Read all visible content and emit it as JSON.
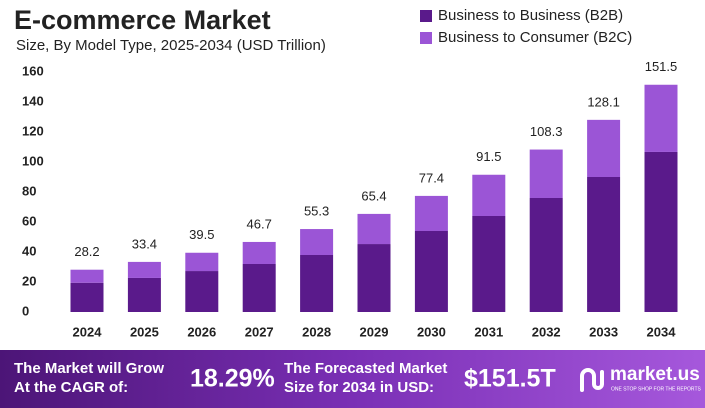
{
  "chart_data": {
    "type": "stacked_bar",
    "title": "E-commerce Market",
    "subtitle": "Size, By Model Type, 2025-2034 (USD Trillion)",
    "categories": [
      "2024",
      "2025",
      "2026",
      "2027",
      "2028",
      "2029",
      "2030",
      "2031",
      "2032",
      "2033",
      "2034"
    ],
    "series": [
      {
        "name": "Business to Business (B2B)",
        "color": "#5a1a8b",
        "values": [
          19.5,
          22.7,
          27.3,
          32,
          38,
          45.3,
          54,
          64,
          76,
          90,
          106.7
        ]
      },
      {
        "name": "Business to Consumer (B2C)",
        "color": "#9b55d6",
        "values": [
          8.7,
          10.7,
          12.2,
          14.7,
          17.3,
          20.1,
          23.4,
          27.5,
          32.3,
          38.1,
          44.8
        ]
      }
    ],
    "totals": [
      28.2,
      33.4,
      39.5,
      46.7,
      55.3,
      65.4,
      77.4,
      91.5,
      108.3,
      128.1,
      151.5
    ],
    "ylim": [
      0,
      160
    ],
    "yticks": [
      0,
      20,
      40,
      60,
      80,
      100,
      120,
      140,
      160
    ],
    "grid": false,
    "legend": "top-right"
  },
  "footer": {
    "cagr_label": [
      "The Market will Grow",
      "At the CAGR of:"
    ],
    "cagr": "18.29%",
    "forecast_label": [
      "The Forecasted Market",
      "Size for 2034 in USD:"
    ],
    "forecast": "$151.5T",
    "brand": "market.us",
    "tagline": "ONE STOP SHOP FOR THE REPORTS"
  }
}
